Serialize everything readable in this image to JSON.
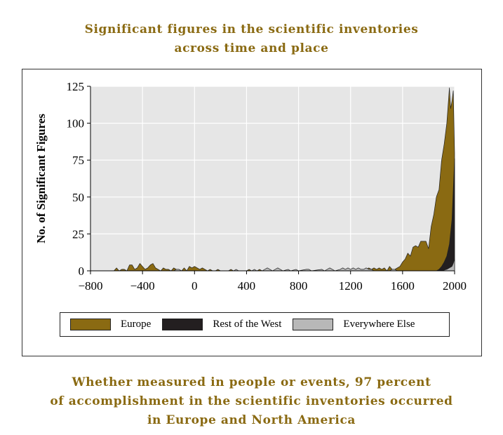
{
  "title": {
    "line1": "Significant figures in the scientific inventories",
    "line2": "across time and place"
  },
  "caption": {
    "line1": "Whether measured in people or events, 97 percent",
    "line2": "of accomplishment in the scientific inventories occurred",
    "line3": "in Europe and North America"
  },
  "colors": {
    "title": "#8a6a12",
    "europe": "#8a6a12",
    "rest_of_west": "#231f20",
    "everywhere_else": "#b8b8b8",
    "plot_bg": "#e6e6e6"
  },
  "chart_data": {
    "type": "area",
    "ylabel": "No. of Significant Figures",
    "xlabel": "",
    "xlim": [
      -800,
      2000
    ],
    "ylim": [
      0,
      125
    ],
    "xticks": [
      "−800",
      "−400",
      "0",
      "400",
      "800",
      "1200",
      "1600",
      "2000"
    ],
    "yticks": [
      "0",
      "25",
      "50",
      "75",
      "100",
      "125"
    ],
    "grid": true,
    "legend_position": "bottom",
    "series": [
      {
        "name": "Europe",
        "points": [
          [
            -800,
            0
          ],
          [
            -620,
            0
          ],
          [
            -600,
            2
          ],
          [
            -580,
            0
          ],
          [
            -560,
            1
          ],
          [
            -540,
            1
          ],
          [
            -520,
            0
          ],
          [
            -500,
            4
          ],
          [
            -480,
            4
          ],
          [
            -460,
            1
          ],
          [
            -440,
            2
          ],
          [
            -420,
            5
          ],
          [
            -400,
            3
          ],
          [
            -380,
            1
          ],
          [
            -360,
            2
          ],
          [
            -340,
            4
          ],
          [
            -320,
            5
          ],
          [
            -300,
            2
          ],
          [
            -280,
            1
          ],
          [
            -260,
            0
          ],
          [
            -240,
            2
          ],
          [
            -220,
            1
          ],
          [
            -200,
            1
          ],
          [
            -180,
            0
          ],
          [
            -160,
            2
          ],
          [
            -140,
            1
          ],
          [
            -120,
            1
          ],
          [
            -100,
            0
          ],
          [
            -80,
            2
          ],
          [
            -60,
            0
          ],
          [
            -40,
            3
          ],
          [
            -20,
            2
          ],
          [
            0,
            3
          ],
          [
            20,
            2
          ],
          [
            40,
            1
          ],
          [
            60,
            2
          ],
          [
            80,
            1
          ],
          [
            100,
            0
          ],
          [
            120,
            1
          ],
          [
            140,
            0
          ],
          [
            160,
            0
          ],
          [
            180,
            1
          ],
          [
            200,
            0
          ],
          [
            260,
            0
          ],
          [
            280,
            1
          ],
          [
            300,
            0
          ],
          [
            400,
            0
          ],
          [
            420,
            1
          ],
          [
            440,
            0
          ],
          [
            480,
            0
          ],
          [
            500,
            1
          ],
          [
            520,
            0
          ],
          [
            1300,
            0
          ],
          [
            1340,
            2
          ],
          [
            1360,
            1
          ],
          [
            1380,
            2
          ],
          [
            1400,
            1
          ],
          [
            1420,
            2
          ],
          [
            1440,
            1
          ],
          [
            1460,
            2
          ],
          [
            1480,
            0
          ],
          [
            1500,
            3
          ],
          [
            1520,
            1
          ],
          [
            1540,
            1
          ],
          [
            1560,
            2
          ],
          [
            1580,
            3
          ],
          [
            1600,
            6
          ],
          [
            1620,
            8
          ],
          [
            1640,
            12
          ],
          [
            1660,
            10
          ],
          [
            1680,
            16
          ],
          [
            1700,
            17
          ],
          [
            1720,
            16
          ],
          [
            1740,
            20
          ],
          [
            1760,
            20
          ],
          [
            1780,
            20
          ],
          [
            1800,
            15
          ],
          [
            1820,
            30
          ],
          [
            1840,
            38
          ],
          [
            1860,
            50
          ],
          [
            1880,
            55
          ],
          [
            1900,
            75
          ],
          [
            1920,
            86
          ],
          [
            1940,
            100
          ],
          [
            1960,
            124
          ],
          [
            1970,
            110
          ],
          [
            1980,
            115
          ],
          [
            1990,
            122
          ],
          [
            2000,
            80
          ]
        ]
      },
      {
        "name": "Rest of the West",
        "points": [
          [
            -800,
            0
          ],
          [
            1860,
            0
          ],
          [
            1880,
            1
          ],
          [
            1900,
            3
          ],
          [
            1920,
            6
          ],
          [
            1940,
            10
          ],
          [
            1960,
            18
          ],
          [
            1980,
            35
          ],
          [
            1990,
            55
          ],
          [
            2000,
            76
          ]
        ]
      },
      {
        "name": "Everywhere Else",
        "points": [
          [
            -800,
            0
          ],
          [
            -160,
            0
          ],
          [
            -140,
            1
          ],
          [
            -120,
            1
          ],
          [
            -100,
            0
          ],
          [
            300,
            0
          ],
          [
            320,
            1
          ],
          [
            340,
            0
          ],
          [
            440,
            0
          ],
          [
            460,
            1
          ],
          [
            480,
            0
          ],
          [
            520,
            0
          ],
          [
            560,
            2
          ],
          [
            580,
            1
          ],
          [
            600,
            0
          ],
          [
            640,
            2
          ],
          [
            660,
            1
          ],
          [
            680,
            0
          ],
          [
            720,
            1
          ],
          [
            740,
            0
          ],
          [
            780,
            1
          ],
          [
            800,
            0
          ],
          [
            860,
            1
          ],
          [
            880,
            1
          ],
          [
            900,
            0
          ],
          [
            980,
            1
          ],
          [
            1000,
            0
          ],
          [
            1040,
            2
          ],
          [
            1060,
            1
          ],
          [
            1080,
            0
          ],
          [
            1120,
            1
          ],
          [
            1140,
            2
          ],
          [
            1160,
            1
          ],
          [
            1180,
            2
          ],
          [
            1200,
            1
          ],
          [
            1220,
            2
          ],
          [
            1240,
            1
          ],
          [
            1260,
            2
          ],
          [
            1280,
            1
          ],
          [
            1300,
            1
          ],
          [
            1320,
            2
          ],
          [
            1340,
            1
          ],
          [
            1360,
            1
          ],
          [
            1380,
            0
          ],
          [
            1500,
            0
          ],
          [
            1520,
            1
          ],
          [
            1540,
            1
          ],
          [
            1560,
            0
          ],
          [
            1900,
            0
          ],
          [
            1940,
            1
          ],
          [
            1960,
            2
          ],
          [
            1980,
            3
          ],
          [
            1990,
            5
          ],
          [
            2000,
            8
          ]
        ]
      }
    ]
  }
}
